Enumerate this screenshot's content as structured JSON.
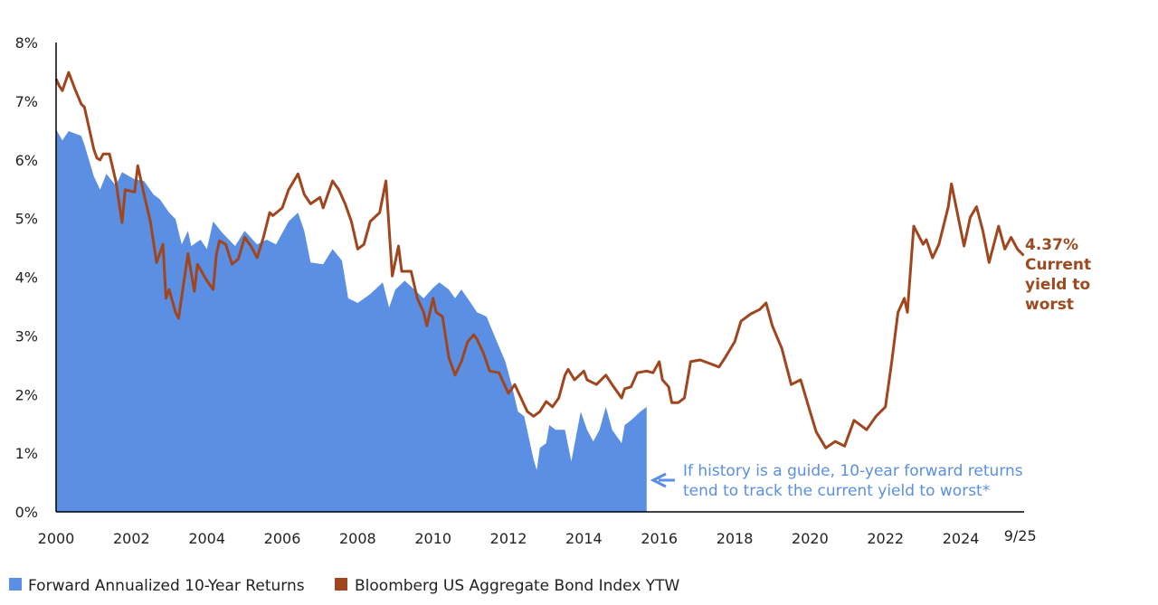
{
  "chart_data": {
    "type": "area+line",
    "title": "",
    "xlabel": "",
    "ylabel": "",
    "ylim": [
      0,
      8
    ],
    "yticks": [
      "0%",
      "1%",
      "2%",
      "3%",
      "4%",
      "5%",
      "6%",
      "7%",
      "8%"
    ],
    "xticks": [
      "2000",
      "2002",
      "2004",
      "2006",
      "2008",
      "2010",
      "2012",
      "2014",
      "2016",
      "2018",
      "2020",
      "2022",
      "2024",
      "9/25"
    ],
    "grid": false,
    "legend_placement": "bottom-left",
    "colors": {
      "returns": "#5a8fe3",
      "ytw": "#a0461e",
      "note_text": "#5b8fe0",
      "ytw_label": "#9c4a1f"
    },
    "series": [
      {
        "name": "Forward Annualized 10-Year Returns",
        "type": "area",
        "points": [
          [
            "2000-01",
            6.52
          ],
          [
            "2000-03",
            6.33
          ],
          [
            "2000-05",
            6.49
          ],
          [
            "2000-09",
            6.41
          ],
          [
            "2000-10",
            6.26
          ],
          [
            "2001-01",
            5.72
          ],
          [
            "2001-03",
            5.49
          ],
          [
            "2001-05",
            5.76
          ],
          [
            "2001-08",
            5.56
          ],
          [
            "2001-10",
            5.79
          ],
          [
            "2002-02",
            5.67
          ],
          [
            "2002-05",
            5.64
          ],
          [
            "2002-08",
            5.41
          ],
          [
            "2002-10",
            5.33
          ],
          [
            "2003-01",
            5.1
          ],
          [
            "2003-03",
            4.99
          ],
          [
            "2003-05",
            4.56
          ],
          [
            "2003-07",
            4.79
          ],
          [
            "2003-08",
            4.53
          ],
          [
            "2003-11",
            4.64
          ],
          [
            "2004-01",
            4.48
          ],
          [
            "2004-03",
            4.95
          ],
          [
            "2004-06",
            4.75
          ],
          [
            "2004-10",
            4.53
          ],
          [
            "2005-01",
            4.79
          ],
          [
            "2005-05",
            4.56
          ],
          [
            "2005-08",
            4.64
          ],
          [
            "2005-11",
            4.56
          ],
          [
            "2006-03",
            4.95
          ],
          [
            "2006-06",
            5.1
          ],
          [
            "2006-08",
            4.79
          ],
          [
            "2006-10",
            4.25
          ],
          [
            "2007-02",
            4.22
          ],
          [
            "2007-05",
            4.48
          ],
          [
            "2007-08",
            4.28
          ],
          [
            "2007-10",
            3.64
          ],
          [
            "2008-01",
            3.56
          ],
          [
            "2008-05",
            3.71
          ],
          [
            "2008-09",
            3.91
          ],
          [
            "2008-11",
            3.48
          ],
          [
            "2009-01",
            3.79
          ],
          [
            "2009-04",
            3.94
          ],
          [
            "2009-07",
            3.79
          ],
          [
            "2009-10",
            3.64
          ],
          [
            "2010-01",
            3.82
          ],
          [
            "2010-03",
            3.91
          ],
          [
            "2010-06",
            3.79
          ],
          [
            "2010-08",
            3.64
          ],
          [
            "2010-10",
            3.79
          ],
          [
            "2011-01",
            3.56
          ],
          [
            "2011-03",
            3.4
          ],
          [
            "2011-06",
            3.33
          ],
          [
            "2011-09",
            2.94
          ],
          [
            "2011-12",
            2.56
          ],
          [
            "2012-02",
            2.17
          ],
          [
            "2012-04",
            1.71
          ],
          [
            "2012-06",
            1.63
          ],
          [
            "2012-09",
            0.89
          ],
          [
            "2012-10",
            0.71
          ],
          [
            "2012-11",
            1.09
          ],
          [
            "2013-01",
            1.17
          ],
          [
            "2013-02",
            1.48
          ],
          [
            "2013-04",
            1.4
          ],
          [
            "2013-07",
            1.4
          ],
          [
            "2013-09",
            0.86
          ],
          [
            "2013-12",
            1.71
          ],
          [
            "2014-02",
            1.4
          ],
          [
            "2014-04",
            1.2
          ],
          [
            "2014-06",
            1.4
          ],
          [
            "2014-08",
            1.79
          ],
          [
            "2014-10",
            1.4
          ],
          [
            "2015-01",
            1.17
          ],
          [
            "2015-02",
            1.48
          ],
          [
            "2015-04",
            1.56
          ],
          [
            "2015-07",
            1.71
          ],
          [
            "2015-09",
            1.79
          ]
        ]
      },
      {
        "name": "Bloomberg US Aggregate Bond Index YTW",
        "type": "line",
        "points": [
          [
            "2000-01",
            7.38
          ],
          [
            "2000-02",
            7.26
          ],
          [
            "2000-03",
            7.18
          ],
          [
            "2000-05",
            7.49
          ],
          [
            "2000-07",
            7.21
          ],
          [
            "2000-09",
            6.95
          ],
          [
            "2000-10",
            6.9
          ],
          [
            "2001-01",
            6.18
          ],
          [
            "2001-02",
            6.03
          ],
          [
            "2001-03",
            6.0
          ],
          [
            "2001-04",
            6.1
          ],
          [
            "2001-06",
            6.1
          ],
          [
            "2001-08",
            5.64
          ],
          [
            "2001-10",
            4.93
          ],
          [
            "2001-11",
            5.49
          ],
          [
            "2002-02",
            5.45
          ],
          [
            "2002-03",
            5.9
          ],
          [
            "2002-05",
            5.41
          ],
          [
            "2002-07",
            4.95
          ],
          [
            "2002-09",
            4.25
          ],
          [
            "2002-11",
            4.56
          ],
          [
            "2002-12",
            3.64
          ],
          [
            "2003-01",
            3.79
          ],
          [
            "2003-03",
            3.4
          ],
          [
            "2003-04",
            3.3
          ],
          [
            "2003-07",
            4.4
          ],
          [
            "2003-09",
            3.76
          ],
          [
            "2003-10",
            4.22
          ],
          [
            "2004-01",
            3.94
          ],
          [
            "2004-03",
            3.79
          ],
          [
            "2004-04",
            4.38
          ],
          [
            "2004-05",
            4.62
          ],
          [
            "2004-07",
            4.56
          ],
          [
            "2004-09",
            4.22
          ],
          [
            "2004-11",
            4.31
          ],
          [
            "2005-01",
            4.68
          ],
          [
            "2005-03",
            4.53
          ],
          [
            "2005-05",
            4.33
          ],
          [
            "2005-07",
            4.68
          ],
          [
            "2005-09",
            5.1
          ],
          [
            "2005-10",
            5.05
          ],
          [
            "2006-01",
            5.18
          ],
          [
            "2006-03",
            5.49
          ],
          [
            "2006-06",
            5.76
          ],
          [
            "2006-08",
            5.41
          ],
          [
            "2006-10",
            5.25
          ],
          [
            "2007-01",
            5.36
          ],
          [
            "2007-02",
            5.18
          ],
          [
            "2007-05",
            5.64
          ],
          [
            "2007-07",
            5.49
          ],
          [
            "2007-09",
            5.25
          ],
          [
            "2007-11",
            4.95
          ],
          [
            "2008-01",
            4.48
          ],
          [
            "2008-03",
            4.56
          ],
          [
            "2008-05",
            4.95
          ],
          [
            "2008-08",
            5.1
          ],
          [
            "2008-10",
            5.64
          ],
          [
            "2008-12",
            4.02
          ],
          [
            "2009-02",
            4.53
          ],
          [
            "2009-03",
            4.1
          ],
          [
            "2009-06",
            4.1
          ],
          [
            "2009-08",
            3.64
          ],
          [
            "2009-10",
            3.4
          ],
          [
            "2009-11",
            3.17
          ],
          [
            "2010-01",
            3.64
          ],
          [
            "2010-02",
            3.4
          ],
          [
            "2010-04",
            3.33
          ],
          [
            "2010-06",
            2.63
          ],
          [
            "2010-08",
            2.33
          ],
          [
            "2010-10",
            2.56
          ],
          [
            "2010-12",
            2.9
          ],
          [
            "2011-02",
            3.02
          ],
          [
            "2011-03",
            2.94
          ],
          [
            "2011-05",
            2.71
          ],
          [
            "2011-07",
            2.4
          ],
          [
            "2011-10",
            2.37
          ],
          [
            "2011-11",
            2.25
          ],
          [
            "2012-01",
            2.02
          ],
          [
            "2012-03",
            2.17
          ],
          [
            "2012-05",
            1.94
          ],
          [
            "2012-07",
            1.71
          ],
          [
            "2012-09",
            1.63
          ],
          [
            "2012-11",
            1.71
          ],
          [
            "2013-01",
            1.88
          ],
          [
            "2013-03",
            1.79
          ],
          [
            "2013-05",
            1.94
          ],
          [
            "2013-07",
            2.33
          ],
          [
            "2013-08",
            2.43
          ],
          [
            "2013-10",
            2.25
          ],
          [
            "2014-01",
            2.4
          ],
          [
            "2014-02",
            2.25
          ],
          [
            "2014-05",
            2.17
          ],
          [
            "2014-08",
            2.33
          ],
          [
            "2014-10",
            2.17
          ],
          [
            "2015-01",
            1.94
          ],
          [
            "2015-02",
            2.1
          ],
          [
            "2015-04",
            2.13
          ],
          [
            "2015-06",
            2.37
          ],
          [
            "2015-09",
            2.4
          ],
          [
            "2015-11",
            2.37
          ],
          [
            "2016-01",
            2.56
          ],
          [
            "2016-02",
            2.25
          ],
          [
            "2016-04",
            2.13
          ],
          [
            "2016-05",
            1.86
          ],
          [
            "2016-07",
            1.86
          ],
          [
            "2016-09",
            1.94
          ],
          [
            "2016-11",
            2.56
          ],
          [
            "2017-02",
            2.59
          ],
          [
            "2017-05",
            2.53
          ],
          [
            "2017-08",
            2.47
          ],
          [
            "2017-10",
            2.63
          ],
          [
            "2018-01",
            2.9
          ],
          [
            "2018-03",
            3.25
          ],
          [
            "2018-06",
            3.37
          ],
          [
            "2018-09",
            3.45
          ],
          [
            "2018-11",
            3.56
          ],
          [
            "2019-01",
            3.17
          ],
          [
            "2019-04",
            2.79
          ],
          [
            "2019-07",
            2.17
          ],
          [
            "2019-10",
            2.25
          ],
          [
            "2020-01",
            1.71
          ],
          [
            "2020-03",
            1.36
          ],
          [
            "2020-06",
            1.09
          ],
          [
            "2020-09",
            1.2
          ],
          [
            "2020-12",
            1.12
          ],
          [
            "2021-03",
            1.56
          ],
          [
            "2021-07",
            1.4
          ],
          [
            "2021-10",
            1.63
          ],
          [
            "2022-01",
            1.79
          ],
          [
            "2022-03",
            2.56
          ],
          [
            "2022-05",
            3.4
          ],
          [
            "2022-07",
            3.64
          ],
          [
            "2022-08",
            3.4
          ],
          [
            "2022-10",
            4.87
          ],
          [
            "2023-01",
            4.56
          ],
          [
            "2023-02",
            4.64
          ],
          [
            "2023-04",
            4.33
          ],
          [
            "2023-06",
            4.56
          ],
          [
            "2023-09",
            5.2
          ],
          [
            "2023-10",
            5.59
          ],
          [
            "2024-02",
            4.53
          ],
          [
            "2024-04",
            5.02
          ],
          [
            "2024-06",
            5.2
          ],
          [
            "2024-08",
            4.79
          ],
          [
            "2024-10",
            4.25
          ],
          [
            "2025-01",
            4.87
          ],
          [
            "2025-03",
            4.48
          ],
          [
            "2025-05",
            4.68
          ],
          [
            "2025-07",
            4.48
          ],
          [
            "2025-09",
            4.37
          ]
        ]
      }
    ],
    "annotations": {
      "current_value": "4.37%",
      "current_label_lines": [
        "Current",
        "yield to",
        "worst"
      ],
      "note_lines": [
        "If history is a guide, 10-year forward returns",
        "tend to track the current yield to worst*"
      ]
    }
  }
}
